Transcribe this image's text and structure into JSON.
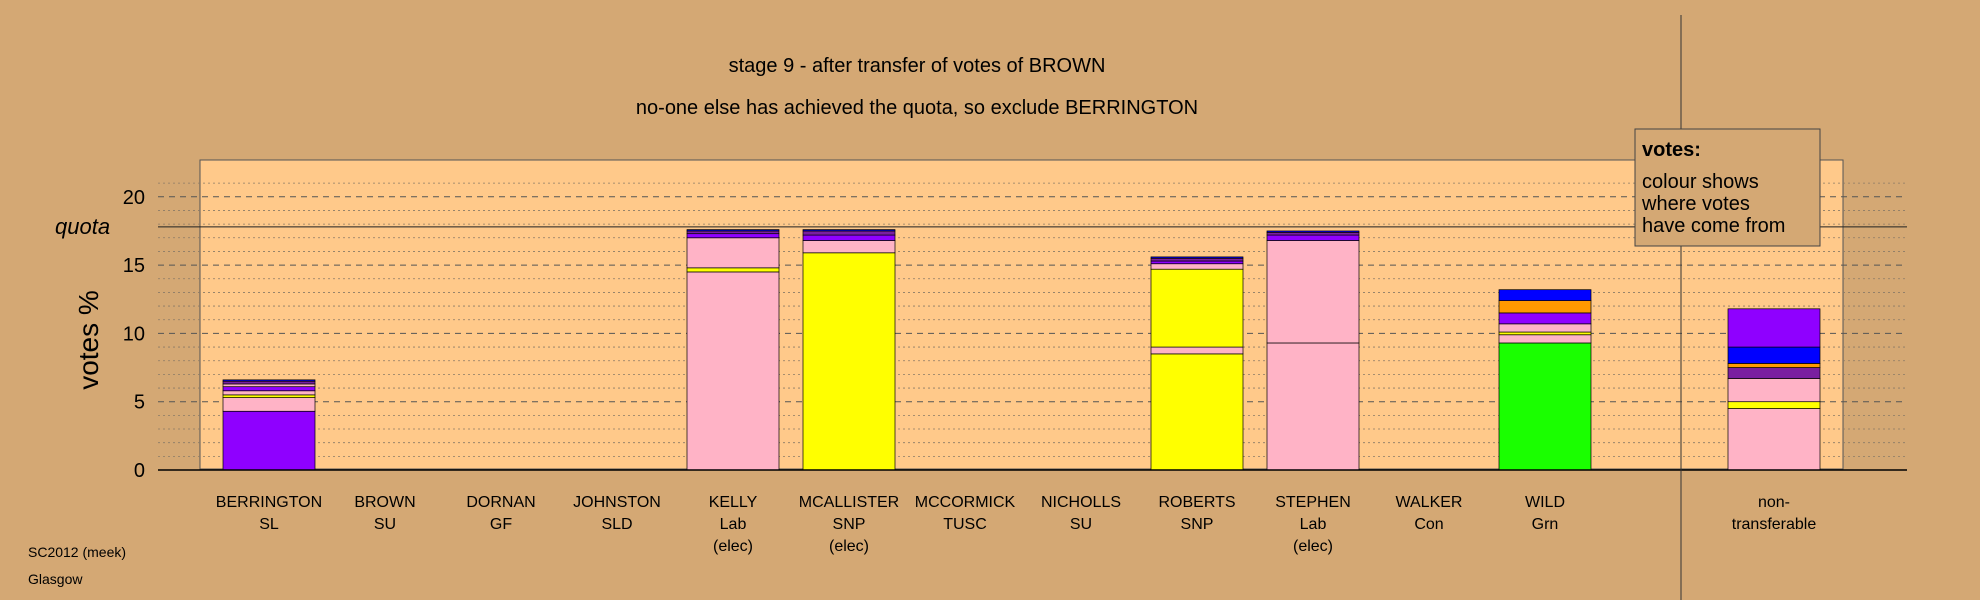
{
  "chart_data": {
    "type": "bar",
    "title": "stage 9 - after transfer of votes of BROWN",
    "subtitle": "no-one else has achieved the quota, so exclude BERRINGTON",
    "ylabel": "votes %",
    "ylim": [
      0,
      22
    ],
    "yticks": [
      0,
      5,
      10,
      15,
      20
    ],
    "quota": 17.8,
    "quota_label": "quota",
    "grid": true,
    "legend": {
      "position": "top-right",
      "title": "votes:",
      "lines": [
        "colour shows",
        "where votes",
        "have come from"
      ]
    },
    "categories": [
      {
        "name": "BERRINGTON",
        "party": "SL",
        "status": ""
      },
      {
        "name": "BROWN",
        "party": "SU",
        "status": ""
      },
      {
        "name": "DORNAN",
        "party": "GF",
        "status": ""
      },
      {
        "name": "JOHNSTON",
        "party": "SLD",
        "status": ""
      },
      {
        "name": "KELLY",
        "party": "Lab",
        "status": "(elec)"
      },
      {
        "name": "MCALLISTER",
        "party": "SNP",
        "status": "(elec)"
      },
      {
        "name": "MCCORMICK",
        "party": "TUSC",
        "status": ""
      },
      {
        "name": "NICHOLLS",
        "party": "SU",
        "status": ""
      },
      {
        "name": "ROBERTS",
        "party": "SNP",
        "status": ""
      },
      {
        "name": "STEPHEN",
        "party": "Lab",
        "status": "(elec)"
      },
      {
        "name": "WALKER",
        "party": "Con",
        "status": ""
      },
      {
        "name": "WILD",
        "party": "Grn",
        "status": ""
      },
      {
        "name": "non-",
        "party": "transferable",
        "status": ""
      }
    ],
    "stacks": [
      [
        {
          "color": "#8f00ff",
          "value": 4.3
        },
        {
          "color": "#ffb3c6",
          "value": 1.0
        },
        {
          "color": "#ffff00",
          "value": 0.2
        },
        {
          "color": "#ffb3c6",
          "value": 0.3
        },
        {
          "color": "#8f00ff",
          "value": 0.3
        },
        {
          "color": "#ffb3c6",
          "value": 0.2
        },
        {
          "color": "#7a1fa0",
          "value": 0.2
        },
        {
          "color": "#0000ff",
          "value": 0.1
        }
      ],
      [],
      [],
      [],
      [
        {
          "color": "#ffb3c6",
          "value": 14.5
        },
        {
          "color": "#ffff00",
          "value": 0.3
        },
        {
          "color": "#ffb3c6",
          "value": 2.2
        },
        {
          "color": "#8f00ff",
          "value": 0.3
        },
        {
          "color": "#7a1fa0",
          "value": 0.2
        },
        {
          "color": "#0000ff",
          "value": 0.1
        }
      ],
      [
        {
          "color": "#ffff00",
          "value": 15.9
        },
        {
          "color": "#ffb3c6",
          "value": 0.9
        },
        {
          "color": "#8f00ff",
          "value": 0.4
        },
        {
          "color": "#7a1fa0",
          "value": 0.3
        },
        {
          "color": "#0000ff",
          "value": 0.1
        }
      ],
      [],
      [],
      [
        {
          "color": "#ffff00",
          "value": 8.5
        },
        {
          "color": "#ffb3c6",
          "value": 0.5
        },
        {
          "color": "#ffff00",
          "value": 5.7
        },
        {
          "color": "#ffb3c6",
          "value": 0.4
        },
        {
          "color": "#8f00ff",
          "value": 0.2
        },
        {
          "color": "#7a1fa0",
          "value": 0.2
        },
        {
          "color": "#0000ff",
          "value": 0.1
        }
      ],
      [
        {
          "color": "#ffb3c6",
          "value": 9.3
        },
        {
          "color": "#ffb3c6",
          "value": 7.5
        },
        {
          "color": "#8f00ff",
          "value": 0.4
        },
        {
          "color": "#7a1fa0",
          "value": 0.2
        },
        {
          "color": "#0000ff",
          "value": 0.1
        }
      ],
      [],
      [
        {
          "color": "#1aff00",
          "value": 9.3
        },
        {
          "color": "#ffb3c6",
          "value": 0.6
        },
        {
          "color": "#ffff00",
          "value": 0.2
        },
        {
          "color": "#ffb3c6",
          "value": 0.6
        },
        {
          "color": "#8f00ff",
          "value": 0.8
        },
        {
          "color": "#ff9900",
          "value": 0.9
        },
        {
          "color": "#0000ff",
          "value": 0.8
        }
      ],
      [
        {
          "color": "#ffb3c6",
          "value": 4.5
        },
        {
          "color": "#ffff00",
          "value": 0.5
        },
        {
          "color": "#ffb3c6",
          "value": 1.7
        },
        {
          "color": "#7a1fa0",
          "value": 0.8
        },
        {
          "color": "#ff9900",
          "value": 0.3
        },
        {
          "color": "#0000ff",
          "value": 1.2
        },
        {
          "color": "#8f00ff",
          "value": 2.8
        }
      ]
    ]
  },
  "footer": {
    "line1": "SC2012 (meek)",
    "line2": "Glasgow"
  },
  "colors": {
    "background": "#d4a874",
    "plot_area": "#ffc98a"
  }
}
